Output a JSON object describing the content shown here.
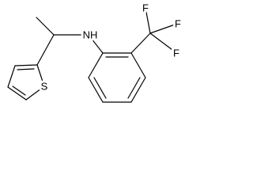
{
  "atoms": {
    "sulfur": "S",
    "amine": "NH",
    "fluorines": [
      "F",
      "F",
      "F"
    ]
  }
}
